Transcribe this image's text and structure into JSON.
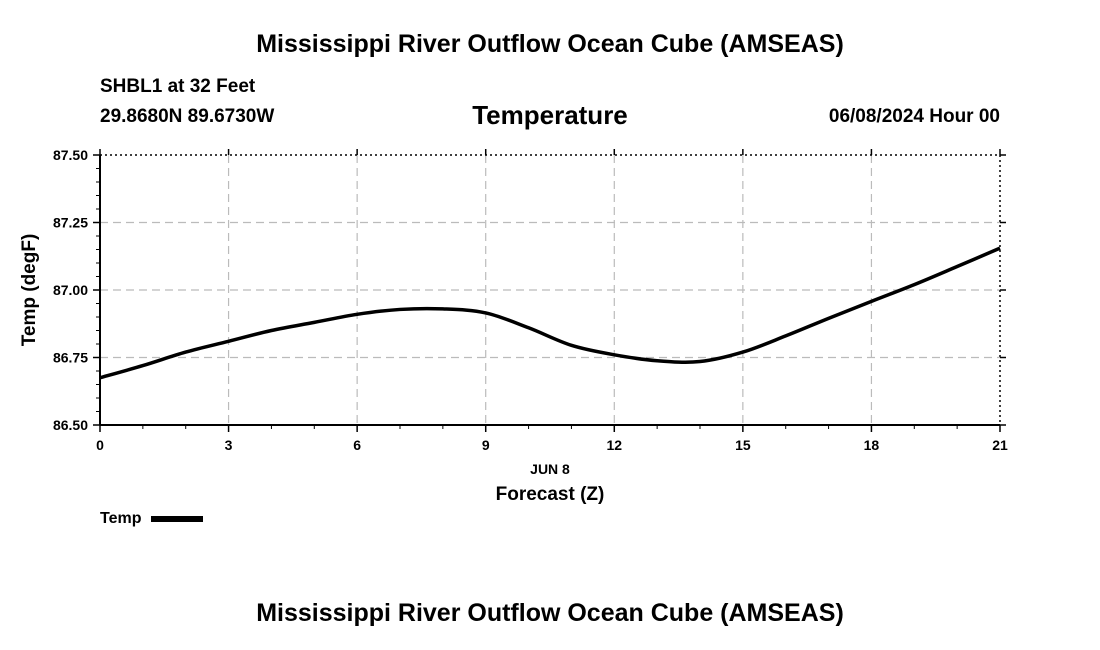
{
  "header": {
    "title": "Mississippi River Outflow Ocean Cube (AMSEAS)",
    "station": "SHBL1 at 32 Feet",
    "coords": "29.8680N  89.6730W",
    "datetime": "06/08/2024 Hour 00"
  },
  "footer": {
    "title": "Mississippi River Outflow Ocean Cube (AMSEAS)"
  },
  "legend": {
    "label": "Temp"
  },
  "chart_data": {
    "type": "line",
    "title": "Temperature",
    "xlabel": "Forecast (Z)",
    "xlabel_date": "JUN 8",
    "ylabel": "Temp (degF)",
    "xlim": [
      0,
      21
    ],
    "ylim": [
      86.5,
      87.5
    ],
    "xticks": [
      0,
      3,
      6,
      9,
      12,
      15,
      18,
      21
    ],
    "xtick_labels": [
      "0",
      "3",
      "6",
      "9",
      "12",
      "15",
      "18",
      "21"
    ],
    "yticks": [
      86.5,
      86.75,
      87.0,
      87.25,
      87.5
    ],
    "ytick_labels": [
      "86.50",
      "86.75",
      "87.00",
      "87.25",
      "87.50"
    ],
    "grid": true,
    "legend_position": "bottom-left",
    "series": [
      {
        "name": "Temp",
        "color": "#000000",
        "x": [
          0,
          1,
          2,
          3,
          4,
          5,
          6,
          7,
          8,
          9,
          10,
          11,
          12,
          13,
          14,
          15,
          16,
          17,
          18,
          19,
          20,
          21
        ],
        "y": [
          86.675,
          86.72,
          86.77,
          86.81,
          86.85,
          86.88,
          86.91,
          86.928,
          86.93,
          86.915,
          86.86,
          86.795,
          86.76,
          86.738,
          86.735,
          86.77,
          86.83,
          86.895,
          86.958,
          87.02,
          87.087,
          87.155
        ]
      }
    ]
  }
}
